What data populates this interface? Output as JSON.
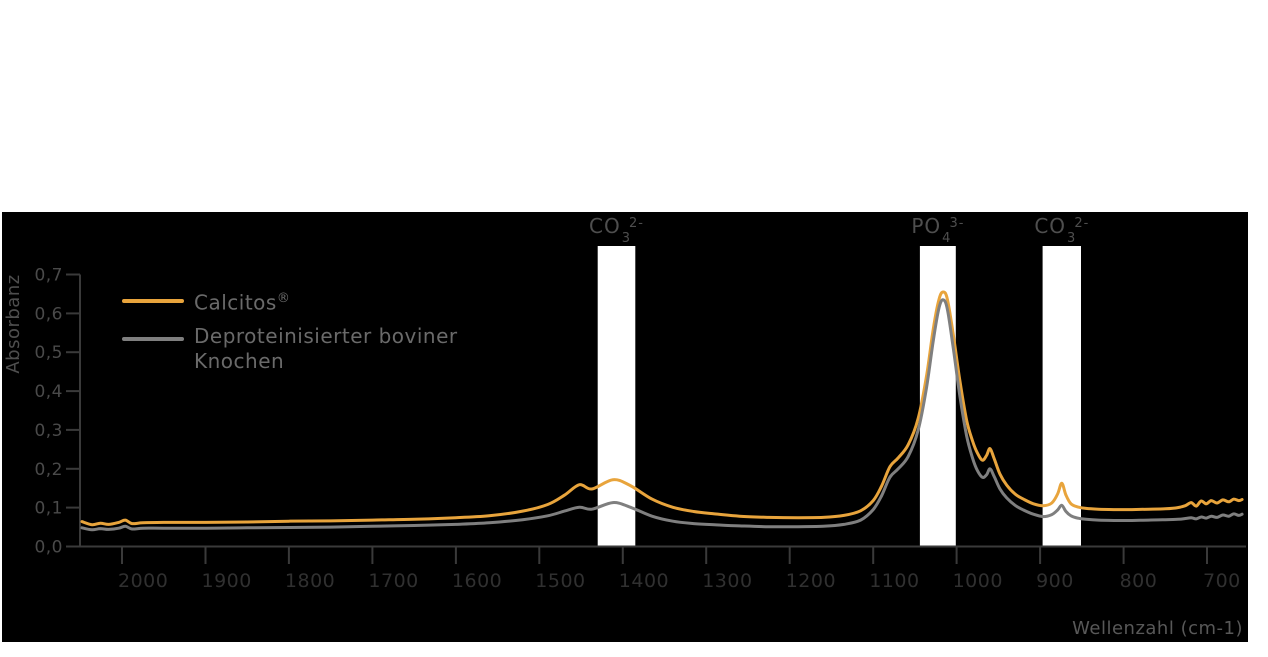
{
  "chart_data": {
    "type": "line",
    "title": "",
    "xlabel": "Wellenzahl (cm-1)",
    "ylabel": "Absorbanz",
    "x_axis": {
      "min": 658,
      "max": 2048,
      "reversed": true,
      "grid": false,
      "ticks": [
        {
          "value": 2000,
          "label": "2000"
        },
        {
          "value": 1900,
          "label": "1900"
        },
        {
          "value": 1800,
          "label": "1800"
        },
        {
          "value": 1700,
          "label": "1700"
        },
        {
          "value": 1600,
          "label": "1600"
        },
        {
          "value": 1500,
          "label": "1500"
        },
        {
          "value": 1400,
          "label": "1400"
        },
        {
          "value": 1300,
          "label": "1300"
        },
        {
          "value": 1200,
          "label": "1200"
        },
        {
          "value": 1100,
          "label": "1100"
        },
        {
          "value": 1000,
          "label": "1000"
        },
        {
          "value": 900,
          "label": "900"
        },
        {
          "value": 800,
          "label": "800"
        },
        {
          "value": 700,
          "label": "700"
        }
      ]
    },
    "y_axis": {
      "min": 0.0,
      "max": 0.7,
      "grid": false,
      "ticks": [
        {
          "value": 0.0,
          "label": "0,0"
        },
        {
          "value": 0.1,
          "label": "0,1"
        },
        {
          "value": 0.2,
          "label": "0,2"
        },
        {
          "value": 0.3,
          "label": "0,3"
        },
        {
          "value": 0.4,
          "label": "0,4"
        },
        {
          "value": 0.5,
          "label": "0,5"
        },
        {
          "value": 0.6,
          "label": "0,6"
        },
        {
          "value": 0.7,
          "label": "0,7"
        }
      ]
    },
    "legend_position": "top-left",
    "highlight_bands": [
      {
        "label": "CO3 2-",
        "label_parts": {
          "base": "CO",
          "sub": "3",
          "sup": "2-"
        },
        "from": 1430,
        "to": 1385
      },
      {
        "label": "PO4 3-",
        "label_parts": {
          "base": "PO",
          "sub": "4",
          "sup": "3-"
        },
        "from": 1044,
        "to": 1001
      },
      {
        "label": "CO3 2-",
        "label_parts": {
          "base": "CO",
          "sub": "3",
          "sup": "2-"
        },
        "from": 897,
        "to": 851
      }
    ],
    "series": [
      {
        "name": "Calcitos®",
        "color": "#E8A43C",
        "x": [
          2048,
          2036,
          2026,
          2016,
          2004,
          1996,
          1988,
          1975,
          1950,
          1900,
          1850,
          1800,
          1750,
          1700,
          1650,
          1600,
          1560,
          1520,
          1490,
          1470,
          1452,
          1437,
          1412,
          1392,
          1365,
          1340,
          1315,
          1290,
          1260,
          1225,
          1190,
          1160,
          1135,
          1115,
          1100,
          1090,
          1080,
          1070,
          1058,
          1046,
          1036,
          1028,
          1021,
          1016,
          1011,
          1004,
          996,
          988,
          981,
          975,
          969,
          964,
          960,
          955,
          948,
          940,
          930,
          920,
          908,
          896,
          886,
          879,
          874,
          869,
          863,
          855,
          845,
          830,
          810,
          790,
          770,
          750,
          735,
          726,
          719,
          713,
          707,
          701,
          695,
          688,
          681,
          674,
          668,
          662,
          658
        ],
        "y": [
          0.064,
          0.056,
          0.06,
          0.057,
          0.062,
          0.068,
          0.059,
          0.061,
          0.062,
          0.062,
          0.063,
          0.065,
          0.066,
          0.068,
          0.07,
          0.074,
          0.079,
          0.091,
          0.108,
          0.132,
          0.159,
          0.148,
          0.172,
          0.158,
          0.122,
          0.101,
          0.09,
          0.084,
          0.078,
          0.075,
          0.074,
          0.075,
          0.08,
          0.092,
          0.118,
          0.155,
          0.205,
          0.228,
          0.262,
          0.33,
          0.44,
          0.56,
          0.637,
          0.655,
          0.636,
          0.545,
          0.425,
          0.325,
          0.272,
          0.24,
          0.222,
          0.235,
          0.252,
          0.226,
          0.186,
          0.158,
          0.135,
          0.122,
          0.11,
          0.105,
          0.112,
          0.135,
          0.163,
          0.132,
          0.11,
          0.102,
          0.098,
          0.096,
          0.095,
          0.095,
          0.096,
          0.097,
          0.1,
          0.105,
          0.113,
          0.104,
          0.117,
          0.11,
          0.118,
          0.112,
          0.12,
          0.115,
          0.122,
          0.118,
          0.121
        ]
      },
      {
        "name": "Deproteinisierter boviner Knochen",
        "color": "#7F7F7F",
        "x": [
          2048,
          2036,
          2026,
          2016,
          2004,
          1996,
          1988,
          1975,
          1950,
          1900,
          1850,
          1800,
          1750,
          1700,
          1650,
          1600,
          1560,
          1520,
          1490,
          1470,
          1452,
          1437,
          1412,
          1392,
          1365,
          1340,
          1315,
          1290,
          1260,
          1225,
          1190,
          1160,
          1135,
          1115,
          1100,
          1090,
          1080,
          1070,
          1058,
          1046,
          1036,
          1028,
          1021,
          1016,
          1011,
          1004,
          996,
          988,
          981,
          975,
          969,
          964,
          960,
          955,
          948,
          940,
          930,
          920,
          908,
          896,
          886,
          879,
          874,
          869,
          863,
          855,
          845,
          830,
          810,
          790,
          770,
          750,
          735,
          726,
          719,
          713,
          707,
          701,
          695,
          688,
          681,
          674,
          668,
          662,
          658
        ],
        "y": [
          0.048,
          0.043,
          0.046,
          0.044,
          0.047,
          0.052,
          0.045,
          0.047,
          0.047,
          0.047,
          0.048,
          0.049,
          0.05,
          0.052,
          0.054,
          0.057,
          0.061,
          0.069,
          0.079,
          0.091,
          0.101,
          0.096,
          0.113,
          0.102,
          0.078,
          0.065,
          0.059,
          0.056,
          0.053,
          0.051,
          0.051,
          0.052,
          0.057,
          0.068,
          0.095,
          0.13,
          0.178,
          0.2,
          0.232,
          0.3,
          0.41,
          0.53,
          0.615,
          0.635,
          0.61,
          0.51,
          0.385,
          0.285,
          0.228,
          0.195,
          0.178,
          0.185,
          0.2,
          0.18,
          0.148,
          0.125,
          0.106,
          0.094,
          0.083,
          0.077,
          0.082,
          0.094,
          0.106,
          0.09,
          0.079,
          0.073,
          0.07,
          0.068,
          0.067,
          0.067,
          0.068,
          0.069,
          0.07,
          0.072,
          0.074,
          0.071,
          0.076,
          0.073,
          0.078,
          0.075,
          0.081,
          0.078,
          0.084,
          0.08,
          0.083
        ]
      }
    ]
  },
  "legend": {
    "items": [
      {
        "name": "Calcitos",
        "mark": "®",
        "color": "#E8A43C"
      },
      {
        "name": "Deproteinisierter boviner Knochen",
        "mark": "",
        "color": "#7F7F7F"
      }
    ]
  },
  "colors": {
    "panel_background": "#000000",
    "axis": "#3A3A3A",
    "y_tick_text": "#4A4A4A",
    "x_tick_text": "#303030",
    "band_label_text": "#4E4E4E",
    "legend_text": "#6A6A6A",
    "highlight_band_fill": "#FFFFFF"
  }
}
